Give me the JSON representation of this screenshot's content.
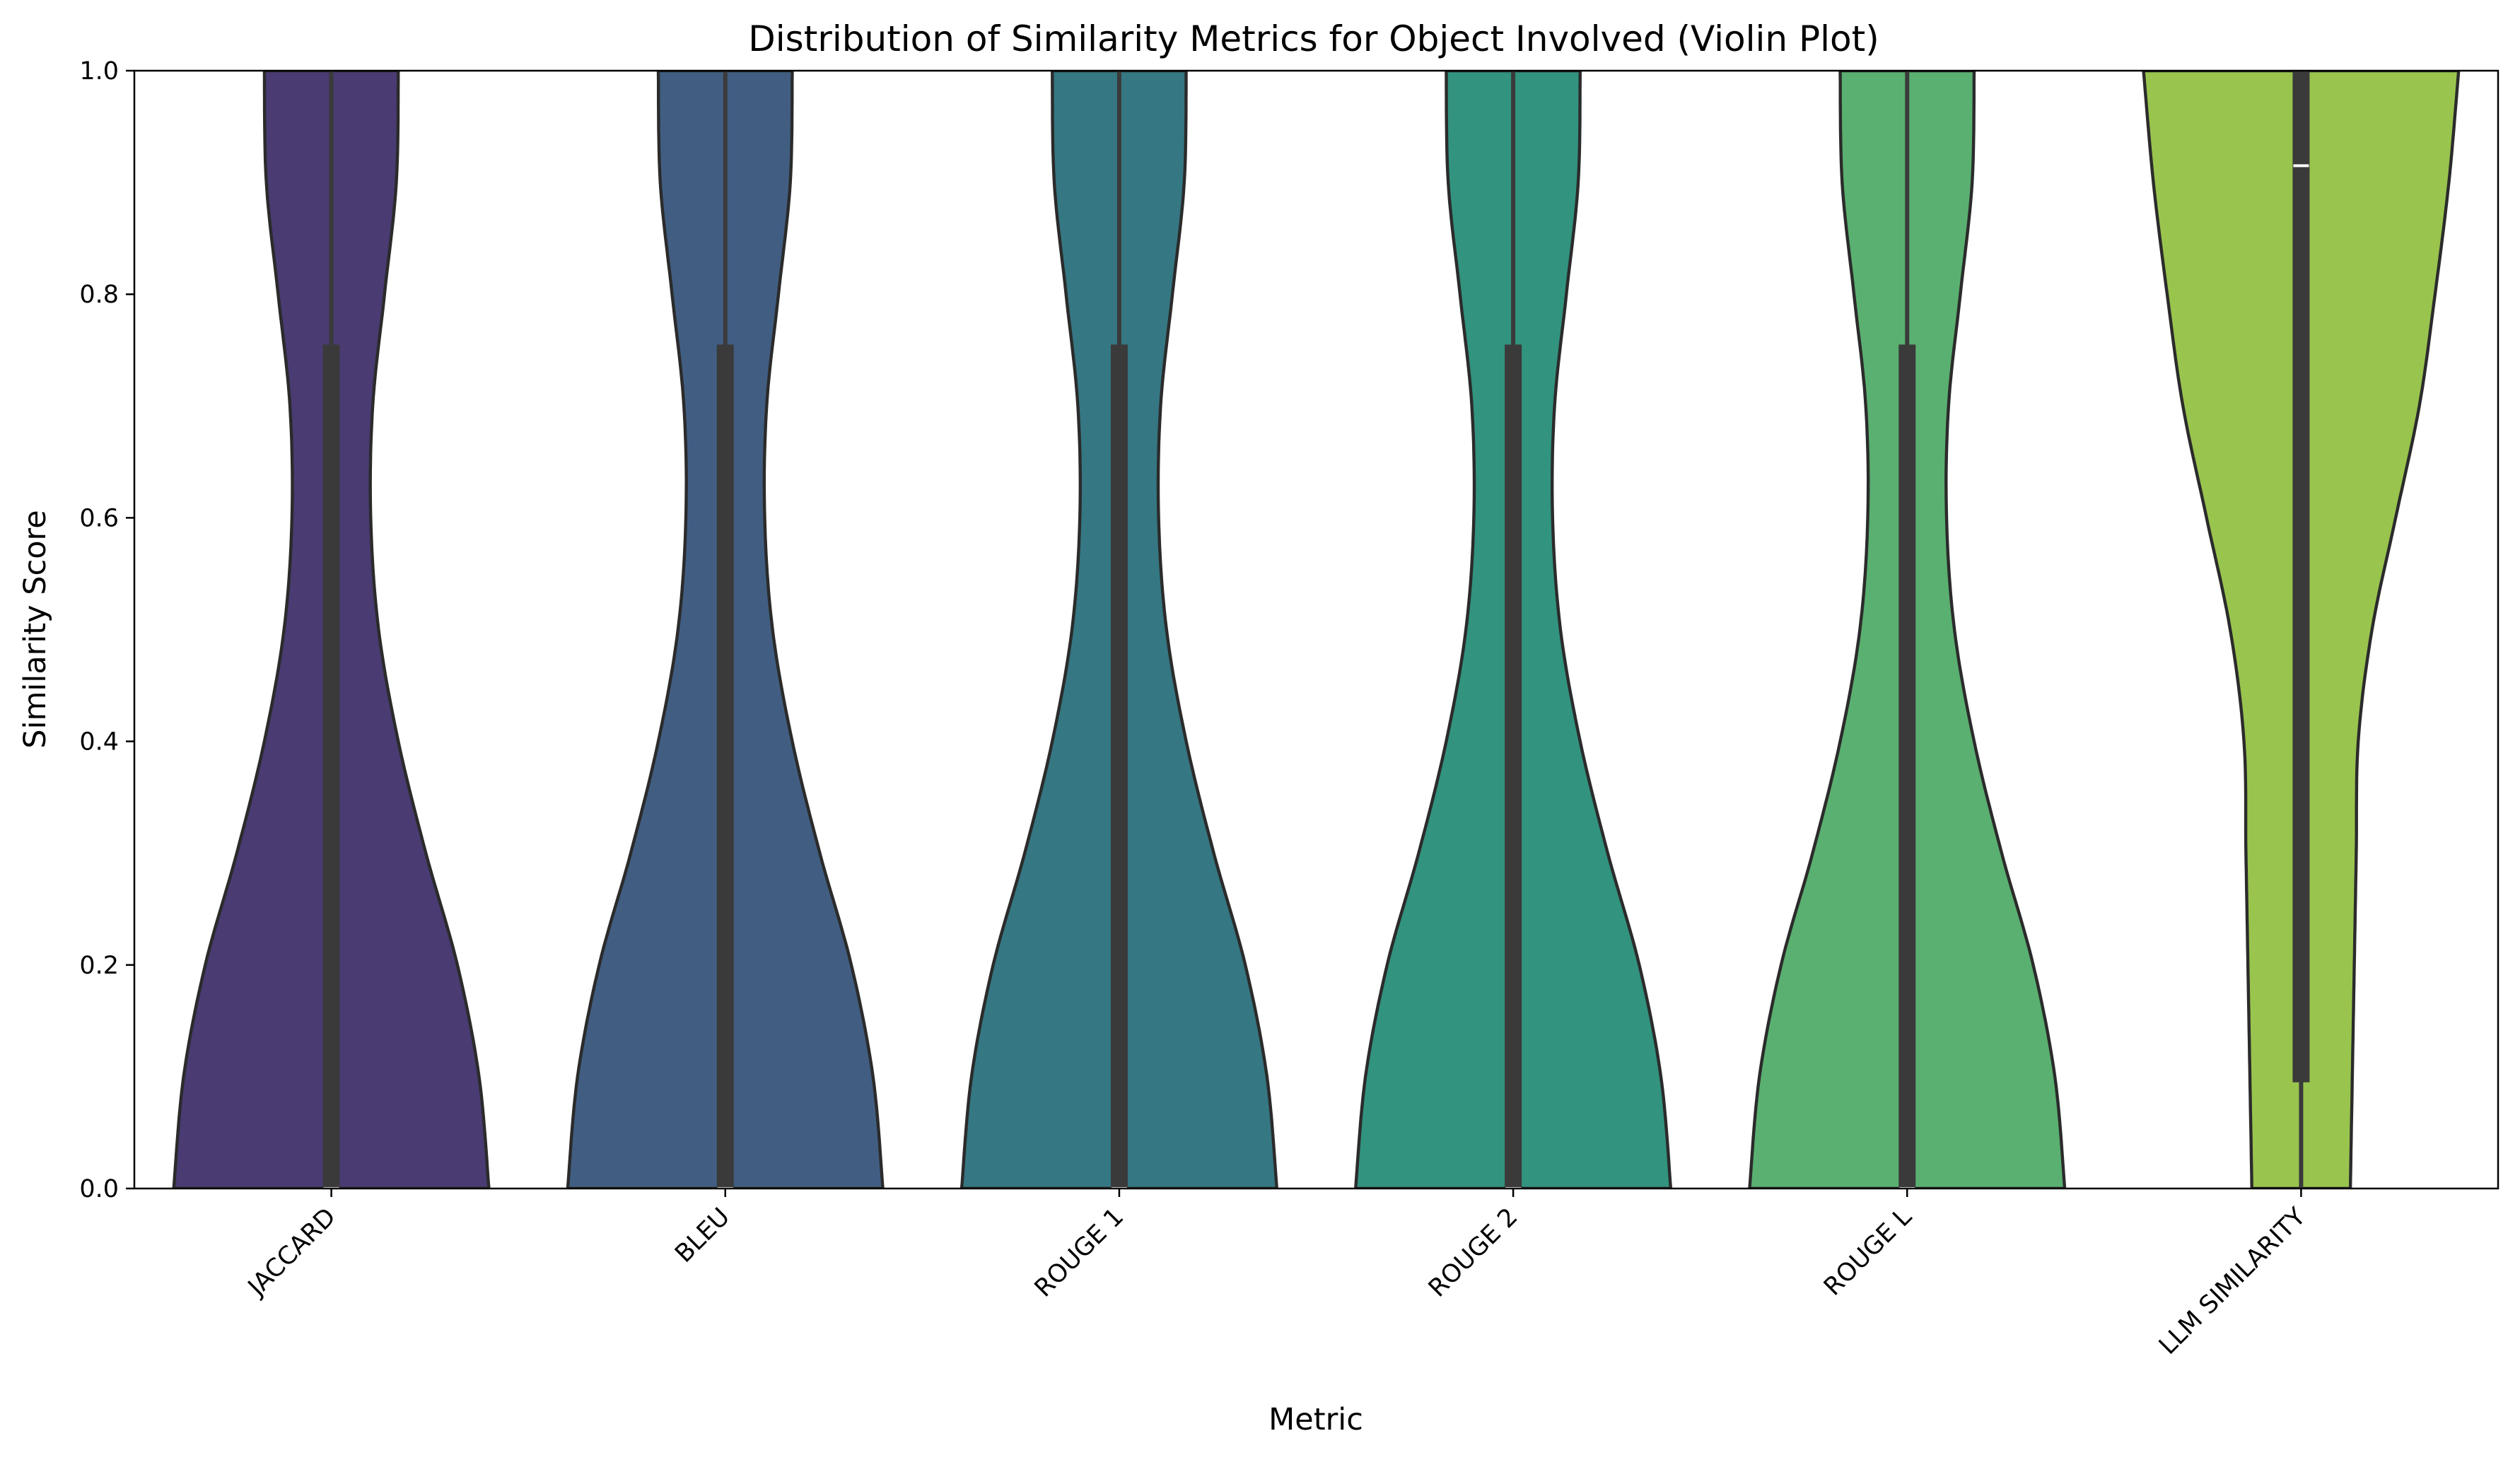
{
  "chart_data": {
    "type": "violin",
    "title": "Distribution of Similarity Metrics for Object Involved (Violin Plot)",
    "xlabel": "Metric",
    "ylabel": "Similarity Score",
    "ylim": [
      0,
      1
    ],
    "y_ticks": [
      "0.0",
      "0.2",
      "0.4",
      "0.6",
      "0.8",
      "1.0"
    ],
    "y_tick_values": [
      0,
      0.2,
      0.4,
      0.6,
      0.8,
      1.0
    ],
    "categories": [
      "JACCARD",
      "BLEU",
      "ROUGE 1",
      "ROUGE 2",
      "ROUGE L",
      "LLM SIMILARITY"
    ],
    "grid": false,
    "legend": "none",
    "series": [
      {
        "category": "JACCARD",
        "color": "#4a3b73",
        "median": 0.0,
        "q1": 0.0,
        "q3": 0.755,
        "whisker_low": 0.0,
        "whisker_high": 1.0,
        "density": [
          [
            0.0,
            0.8
          ],
          [
            0.1,
            0.75
          ],
          [
            0.2,
            0.64
          ],
          [
            0.3,
            0.48
          ],
          [
            0.4,
            0.34
          ],
          [
            0.5,
            0.24
          ],
          [
            0.6,
            0.2
          ],
          [
            0.7,
            0.21
          ],
          [
            0.8,
            0.27
          ],
          [
            0.9,
            0.33
          ],
          [
            1.0,
            0.34
          ]
        ]
      },
      {
        "category": "BLEU",
        "color": "#415e82",
        "median": 0.0,
        "q1": 0.0,
        "q3": 0.755,
        "whisker_low": 0.0,
        "whisker_high": 1.0,
        "density": [
          [
            0.0,
            0.8
          ],
          [
            0.1,
            0.75
          ],
          [
            0.2,
            0.64
          ],
          [
            0.3,
            0.48
          ],
          [
            0.4,
            0.34
          ],
          [
            0.5,
            0.24
          ],
          [
            0.6,
            0.2
          ],
          [
            0.7,
            0.21
          ],
          [
            0.8,
            0.27
          ],
          [
            0.9,
            0.33
          ],
          [
            1.0,
            0.34
          ]
        ]
      },
      {
        "category": "ROUGE 1",
        "color": "#357782",
        "median": 0.0,
        "q1": 0.0,
        "q3": 0.755,
        "whisker_low": 0.0,
        "whisker_high": 1.0,
        "density": [
          [
            0.0,
            0.8
          ],
          [
            0.1,
            0.75
          ],
          [
            0.2,
            0.64
          ],
          [
            0.3,
            0.48
          ],
          [
            0.4,
            0.34
          ],
          [
            0.5,
            0.24
          ],
          [
            0.6,
            0.2
          ],
          [
            0.7,
            0.21
          ],
          [
            0.8,
            0.27
          ],
          [
            0.9,
            0.33
          ],
          [
            1.0,
            0.34
          ]
        ]
      },
      {
        "category": "ROUGE 2",
        "color": "#32937f",
        "median": 0.0,
        "q1": 0.0,
        "q3": 0.755,
        "whisker_low": 0.0,
        "whisker_high": 1.0,
        "density": [
          [
            0.0,
            0.8
          ],
          [
            0.1,
            0.75
          ],
          [
            0.2,
            0.64
          ],
          [
            0.3,
            0.48
          ],
          [
            0.4,
            0.34
          ],
          [
            0.5,
            0.24
          ],
          [
            0.6,
            0.2
          ],
          [
            0.7,
            0.21
          ],
          [
            0.8,
            0.27
          ],
          [
            0.9,
            0.33
          ],
          [
            1.0,
            0.34
          ]
        ]
      },
      {
        "category": "ROUGE L",
        "color": "#5ab070",
        "median": 0.0,
        "q1": 0.0,
        "q3": 0.755,
        "whisker_low": 0.0,
        "whisker_high": 1.0,
        "density": [
          [
            0.0,
            0.8
          ],
          [
            0.1,
            0.75
          ],
          [
            0.2,
            0.64
          ],
          [
            0.3,
            0.48
          ],
          [
            0.4,
            0.34
          ],
          [
            0.5,
            0.24
          ],
          [
            0.6,
            0.2
          ],
          [
            0.7,
            0.21
          ],
          [
            0.8,
            0.27
          ],
          [
            0.9,
            0.33
          ],
          [
            1.0,
            0.34
          ]
        ]
      },
      {
        "category": "LLM SIMILARITY",
        "color": "#99c44e",
        "median": 0.915,
        "q1": 0.095,
        "q3": 1.0,
        "whisker_low": 0.0,
        "whisker_high": 1.0,
        "density": [
          [
            0.0,
            0.25
          ],
          [
            0.1,
            0.26
          ],
          [
            0.2,
            0.27
          ],
          [
            0.3,
            0.28
          ],
          [
            0.4,
            0.29
          ],
          [
            0.5,
            0.36
          ],
          [
            0.6,
            0.48
          ],
          [
            0.7,
            0.6
          ],
          [
            0.8,
            0.68
          ],
          [
            0.9,
            0.75
          ],
          [
            1.0,
            0.8
          ]
        ]
      }
    ]
  }
}
